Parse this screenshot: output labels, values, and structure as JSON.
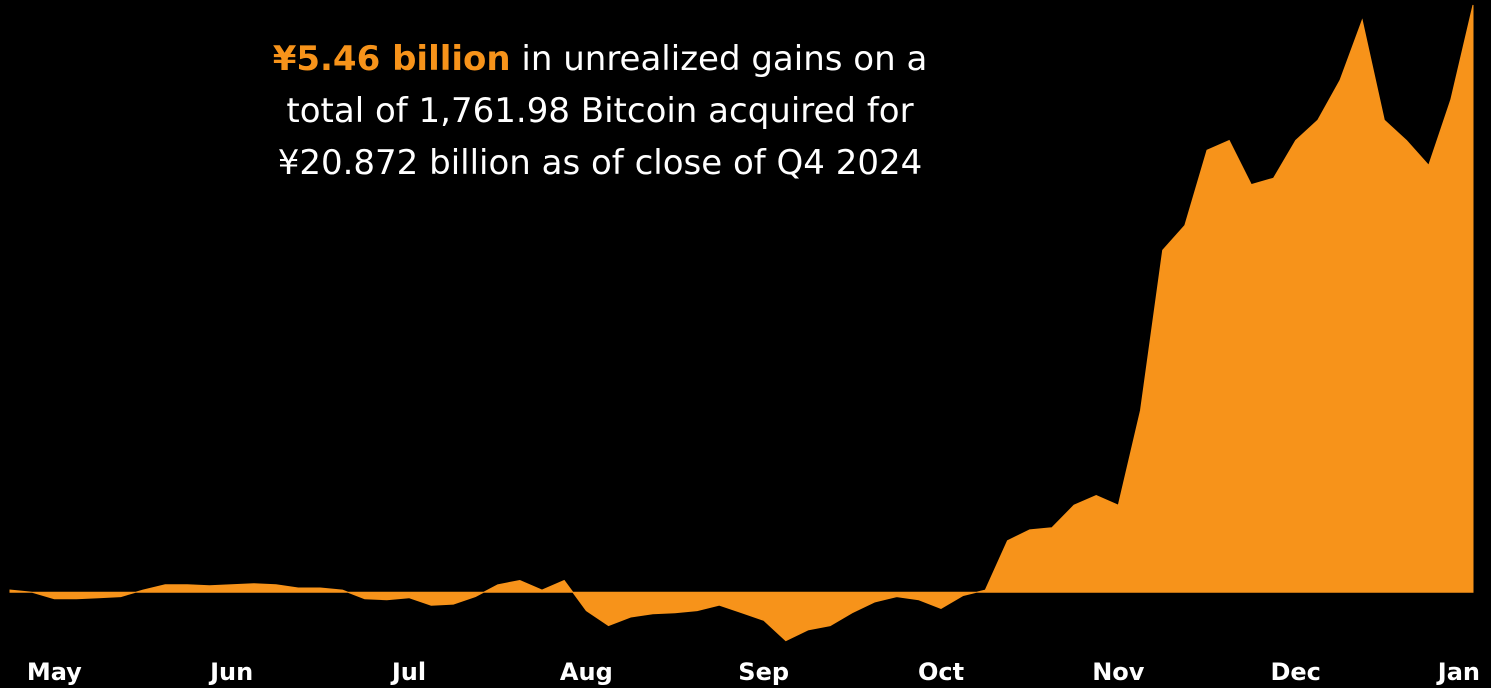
{
  "chart_data": {
    "type": "area",
    "title": {
      "highlight": "¥5.46 billion",
      "lines": [
        " in unrealized gains on a",
        "total of 1,761.98 Bitcoin acquired for",
        "¥20.872 billion as of close of Q4 2024"
      ]
    },
    "categories": [
      null,
      null,
      "May",
      null,
      null,
      null,
      null,
      null,
      null,
      null,
      "Jun",
      null,
      null,
      null,
      null,
      null,
      null,
      null,
      "Jul",
      null,
      null,
      null,
      null,
      null,
      null,
      null,
      "Aug",
      null,
      null,
      null,
      null,
      null,
      null,
      null,
      "Sep",
      null,
      null,
      null,
      null,
      null,
      null,
      null,
      "Oct",
      null,
      null,
      null,
      null,
      null,
      null,
      null,
      "Nov",
      null,
      null,
      null,
      null,
      null,
      null,
      null,
      "Dec",
      null,
      null,
      null,
      null,
      null,
      null,
      null,
      "Jan"
    ],
    "values": [
      0.02,
      0,
      -0.06,
      -0.06,
      -0.05,
      -0.04,
      0.02,
      0.07,
      0.07,
      0.06,
      0.07,
      0.08,
      0.07,
      0.04,
      0.04,
      0.02,
      -0.06,
      -0.07,
      -0.05,
      -0.12,
      -0.11,
      -0.04,
      0.07,
      0.11,
      0.02,
      0.11,
      -0.17,
      -0.31,
      -0.23,
      -0.2,
      -0.19,
      -0.17,
      -0.12,
      -0.19,
      -0.26,
      -0.45,
      -0.35,
      -0.31,
      -0.19,
      -0.09,
      -0.04,
      -0.07,
      -0.15,
      -0.03,
      0.02,
      0.48,
      0.58,
      0.6,
      0.81,
      0.9,
      0.81,
      1.69,
      3.18,
      3.41,
      4.11,
      4.2,
      3.79,
      3.85,
      4.2,
      4.39,
      4.76,
      5.32,
      4.39,
      4.2,
      3.97,
      4.58,
      5.46
    ],
    "color": "#f7931a",
    "highlight_color": "#f7931a",
    "ylim": [
      -0.49,
      5.46
    ]
  }
}
